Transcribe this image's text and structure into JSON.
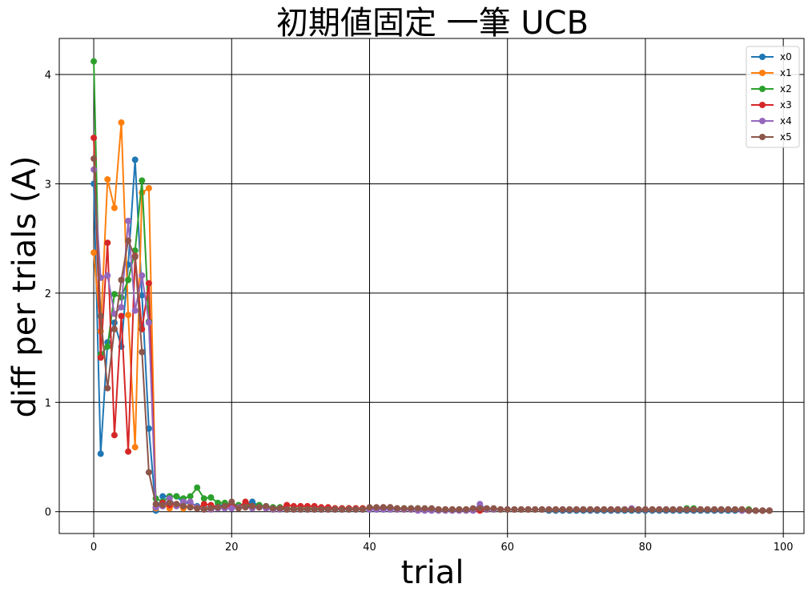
{
  "chart_data": {
    "type": "line",
    "title": "初期値固定 一筆 UCB",
    "xlabel": "trial",
    "ylabel": "diff  per  trials (A)",
    "xlim": [
      -5,
      103
    ],
    "ylim": [
      -0.2,
      4.33
    ],
    "xticks": [
      0,
      20,
      40,
      60,
      80,
      100
    ],
    "yticks": [
      0,
      1,
      2,
      3,
      4
    ],
    "grid": true,
    "legend_position": "top-right",
    "series": [
      {
        "name": "x0",
        "color": "#1f77b4",
        "values": [
          3.0,
          0.53,
          1.55,
          1.73,
          1.51,
          2.26,
          3.22,
          1.98,
          0.76,
          0.01,
          0.14,
          0.14,
          0.14,
          0.08,
          0.08,
          0.05,
          0.04,
          0.04,
          0.05,
          0.07,
          0.06,
          0.05,
          0.07,
          0.09,
          0.05,
          0.04,
          0.03,
          0.03,
          0.03,
          0.02,
          0.02,
          0.02,
          0.02,
          0.02,
          0.02,
          0.02,
          0.02,
          0.02,
          0.02,
          0.02,
          0.02,
          0.02,
          0.02,
          0.02,
          0.02,
          0.02,
          0.02,
          0.02,
          0.02,
          0.02,
          0.02,
          0.02,
          0.02,
          0.02,
          0.02,
          0.02,
          0.02,
          0.02,
          0.02,
          0.02,
          0.02,
          0.02,
          0.02,
          0.02,
          0.02,
          0.02,
          0.01,
          0.01,
          0.01,
          0.01,
          0.01,
          0.01,
          0.01,
          0.01,
          0.01,
          0.01,
          0.01,
          0.01,
          0.01,
          0.01,
          0.01,
          0.01,
          0.01,
          0.01,
          0.01,
          0.01,
          0.01,
          0.01,
          0.01,
          0.01,
          0.01,
          0.01,
          0.01,
          0.01,
          0.01,
          0.01,
          0.01,
          0.01,
          0.01
        ]
      },
      {
        "name": "x1",
        "color": "#ff7f0e",
        "values": [
          2.37,
          1.65,
          3.04,
          2.78,
          3.56,
          1.8,
          0.59,
          2.92,
          2.96,
          0.03,
          0.07,
          0.03,
          0.06,
          0.03,
          0.05,
          0.03,
          0.03,
          0.03,
          0.04,
          0.04,
          0.04,
          0.04,
          0.05,
          0.04,
          0.04,
          0.03,
          0.03,
          0.03,
          0.03,
          0.03,
          0.03,
          0.03,
          0.03,
          0.03,
          0.03,
          0.03,
          0.03,
          0.03,
          0.03,
          0.03,
          0.03,
          0.03,
          0.03,
          0.03,
          0.02,
          0.02,
          0.02,
          0.02,
          0.02,
          0.02,
          0.02,
          0.02,
          0.02,
          0.02,
          0.02,
          0.02,
          0.02,
          0.02,
          0.02,
          0.02,
          0.02,
          0.02,
          0.02,
          0.02,
          0.02,
          0.02,
          0.02,
          0.02,
          0.02,
          0.02,
          0.02,
          0.02,
          0.02,
          0.02,
          0.02,
          0.02,
          0.02,
          0.02,
          0.02,
          0.02,
          0.02,
          0.02,
          0.02,
          0.02,
          0.02,
          0.02,
          0.02,
          0.02,
          0.02,
          0.02,
          0.02,
          0.02,
          0.02,
          0.02,
          0.02,
          0.02,
          0.01,
          0.01,
          0.01
        ]
      },
      {
        "name": "x2",
        "color": "#2ca02c",
        "values": [
          4.12,
          1.44,
          1.51,
          1.99,
          1.96,
          2.12,
          2.39,
          3.03,
          1.74,
          0.12,
          0.09,
          0.14,
          0.14,
          0.12,
          0.14,
          0.22,
          0.12,
          0.13,
          0.08,
          0.08,
          0.07,
          0.06,
          0.06,
          0.05,
          0.06,
          0.05,
          0.04,
          0.04,
          0.03,
          0.03,
          0.03,
          0.03,
          0.03,
          0.03,
          0.03,
          0.03,
          0.03,
          0.03,
          0.03,
          0.03,
          0.03,
          0.03,
          0.03,
          0.03,
          0.03,
          0.03,
          0.03,
          0.03,
          0.02,
          0.02,
          0.02,
          0.02,
          0.02,
          0.02,
          0.02,
          0.02,
          0.02,
          0.02,
          0.02,
          0.02,
          0.02,
          0.02,
          0.02,
          0.02,
          0.02,
          0.02,
          0.02,
          0.02,
          0.02,
          0.02,
          0.02,
          0.02,
          0.02,
          0.02,
          0.02,
          0.02,
          0.02,
          0.02,
          0.02,
          0.02,
          0.02,
          0.02,
          0.02,
          0.02,
          0.02,
          0.02,
          0.03,
          0.03,
          0.02,
          0.02,
          0.02,
          0.02,
          0.02,
          0.02,
          0.02,
          0.02,
          0.01,
          0.01,
          0.01
        ]
      },
      {
        "name": "x3",
        "color": "#d62728",
        "values": [
          3.42,
          1.41,
          2.46,
          0.7,
          1.79,
          0.55,
          2.34,
          1.67,
          2.09,
          0.04,
          0.08,
          0.06,
          0.07,
          0.05,
          0.04,
          0.03,
          0.07,
          0.06,
          0.04,
          0.05,
          0.05,
          0.04,
          0.09,
          0.05,
          0.04,
          0.03,
          0.02,
          0.03,
          0.06,
          0.05,
          0.05,
          0.05,
          0.05,
          0.04,
          0.04,
          0.03,
          0.03,
          0.03,
          0.03,
          0.03,
          0.03,
          0.03,
          0.04,
          0.04,
          0.03,
          0.02,
          0.02,
          0.02,
          0.02,
          0.02,
          0.02,
          0.02,
          0.02,
          0.02,
          0.02,
          0.02,
          0.01,
          0.02,
          0.02,
          0.02,
          0.02,
          0.02,
          0.02,
          0.02,
          0.02,
          0.02,
          0.02,
          0.02,
          0.02,
          0.02,
          0.02,
          0.02,
          0.02,
          0.02,
          0.02,
          0.02,
          0.02,
          0.02,
          0.02,
          0.02,
          0.02,
          0.02,
          0.02,
          0.02,
          0.02,
          0.02,
          0.02,
          0.02,
          0.02,
          0.02,
          0.02,
          0.02,
          0.02,
          0.02,
          0.02,
          0.01,
          0.01,
          0.01,
          0.01
        ]
      },
      {
        "name": "x4",
        "color": "#9467bd",
        "values": [
          3.13,
          2.14,
          2.16,
          1.81,
          1.87,
          2.66,
          1.84,
          2.16,
          1.73,
          0.04,
          0.05,
          0.12,
          0.05,
          0.09,
          0.09,
          0.04,
          0.02,
          0.02,
          0.03,
          0.03,
          0.03,
          0.04,
          0.04,
          0.03,
          0.04,
          0.03,
          0.02,
          0.02,
          0.02,
          0.02,
          0.02,
          0.02,
          0.02,
          0.02,
          0.02,
          0.02,
          0.02,
          0.02,
          0.02,
          0.02,
          0.02,
          0.02,
          0.02,
          0.02,
          0.02,
          0.02,
          0.02,
          0.01,
          0.01,
          0.01,
          0.01,
          0.01,
          0.01,
          0.01,
          0.01,
          0.01,
          0.07,
          0.02,
          0.02,
          0.02,
          0.02,
          0.02,
          0.02,
          0.02,
          0.02,
          0.02,
          0.02,
          0.02,
          0.02,
          0.02,
          0.02,
          0.02,
          0.02,
          0.02,
          0.02,
          0.02,
          0.02,
          0.02,
          0.03,
          0.02,
          0.02,
          0.02,
          0.02,
          0.02,
          0.02,
          0.02,
          0.02,
          0.02,
          0.02,
          0.02,
          0.02,
          0.02,
          0.02,
          0.02,
          0.01,
          0.01,
          0.01,
          0.01,
          0.01
        ]
      },
      {
        "name": "x5",
        "color": "#8c564b",
        "values": [
          3.23,
          1.79,
          1.13,
          1.67,
          2.12,
          2.48,
          2.33,
          1.46,
          0.36,
          0.07,
          0.06,
          0.08,
          0.07,
          0.05,
          0.04,
          0.03,
          0.02,
          0.03,
          0.04,
          0.05,
          0.09,
          0.03,
          0.04,
          0.05,
          0.04,
          0.05,
          0.03,
          0.03,
          0.02,
          0.02,
          0.02,
          0.02,
          0.02,
          0.02,
          0.02,
          0.02,
          0.02,
          0.02,
          0.02,
          0.02,
          0.04,
          0.04,
          0.04,
          0.04,
          0.03,
          0.03,
          0.03,
          0.03,
          0.03,
          0.03,
          0.02,
          0.02,
          0.02,
          0.02,
          0.02,
          0.03,
          0.03,
          0.03,
          0.03,
          0.02,
          0.02,
          0.02,
          0.02,
          0.02,
          0.02,
          0.02,
          0.02,
          0.02,
          0.02,
          0.02,
          0.02,
          0.02,
          0.02,
          0.02,
          0.02,
          0.02,
          0.02,
          0.02,
          0.02,
          0.02,
          0.02,
          0.02,
          0.02,
          0.02,
          0.02,
          0.02,
          0.02,
          0.02,
          0.02,
          0.02,
          0.02,
          0.02,
          0.02,
          0.02,
          0.02,
          0.01,
          0.01,
          0.01,
          0.01
        ]
      }
    ]
  }
}
